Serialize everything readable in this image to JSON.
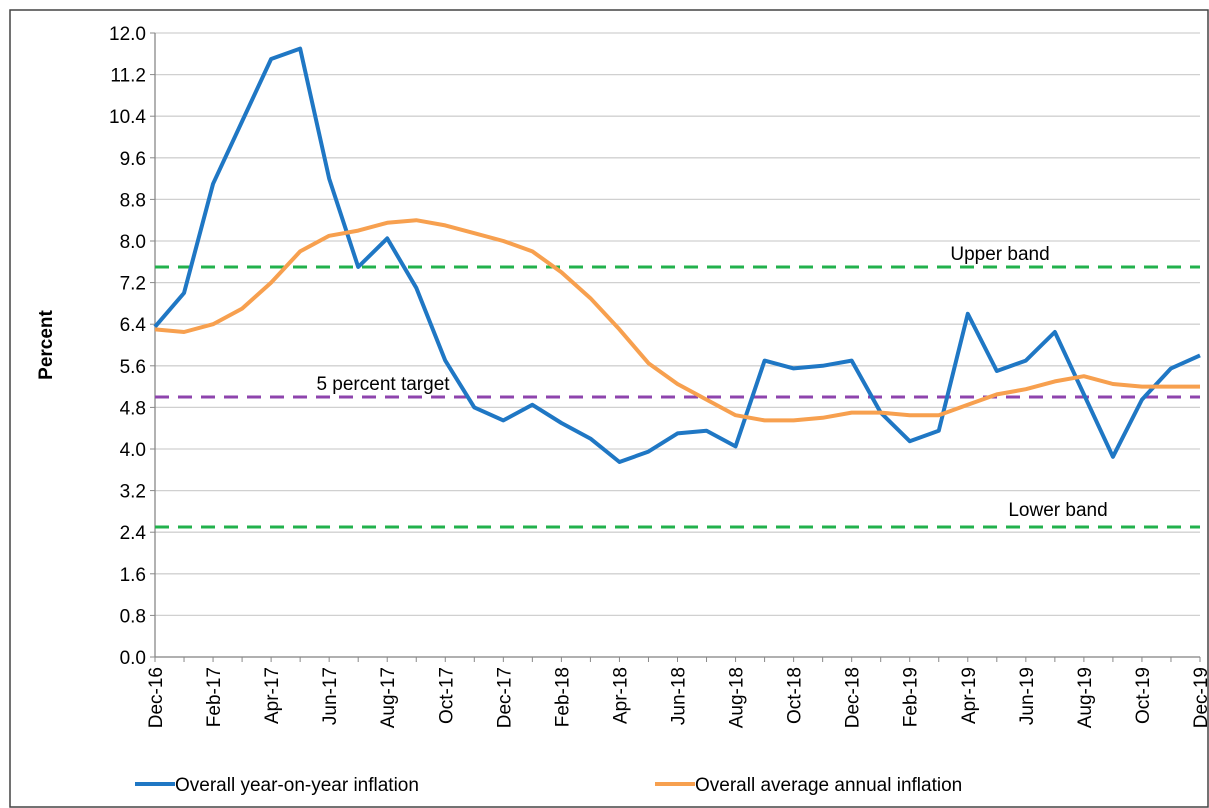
{
  "chart_data": {
    "type": "line",
    "y_label": "Percent",
    "categories": [
      "Dec-16",
      null,
      "Feb-17",
      null,
      "Apr-17",
      null,
      "Jun-17",
      null,
      "Aug-17",
      null,
      "Oct-17",
      null,
      "Dec-17",
      null,
      "Feb-18",
      null,
      "Apr-18",
      null,
      "Jun-18",
      null,
      "Aug-18",
      null,
      "Oct-18",
      null,
      "Dec-18",
      null,
      "Feb-19",
      null,
      "Apr-19",
      null,
      "Jun-19",
      null,
      "Aug-19",
      null,
      "Oct-19",
      null,
      "Dec-19"
    ],
    "series": [
      {
        "name": "Overall year-on-year inflation",
        "color": "#1f77c4",
        "values": [
          6.35,
          7.0,
          9.1,
          10.3,
          11.5,
          11.7,
          9.2,
          7.5,
          8.05,
          7.1,
          5.7,
          4.8,
          4.55,
          4.85,
          4.5,
          4.2,
          3.75,
          3.95,
          4.3,
          4.35,
          4.05,
          5.7,
          5.55,
          5.6,
          5.7,
          4.7,
          4.15,
          4.35,
          6.6,
          5.5,
          5.7,
          6.25,
          5.05,
          3.85,
          4.95,
          5.55,
          5.8
        ]
      },
      {
        "name": "Overall average annual inflation",
        "color": "#f7a04f",
        "values": [
          6.3,
          6.25,
          6.4,
          6.7,
          7.2,
          7.8,
          8.1,
          8.2,
          8.35,
          8.4,
          8.3,
          8.15,
          8.0,
          7.8,
          7.4,
          6.9,
          6.3,
          5.65,
          5.25,
          4.95,
          4.65,
          4.55,
          4.55,
          4.6,
          4.7,
          4.7,
          4.65,
          4.65,
          4.85,
          5.05,
          5.15,
          5.3,
          5.4,
          5.25,
          5.2,
          5.2,
          5.2
        ]
      }
    ],
    "reference_lines": [
      {
        "label": "Upper band",
        "value": 7.5,
        "color": "#22b14c"
      },
      {
        "label": "5 percent target",
        "value": 5,
        "color": "#8e44ad"
      },
      {
        "label": "Lower band",
        "value": 2.5,
        "color": "#22b14c"
      }
    ],
    "ylim": [
      0,
      12
    ],
    "yticks": [
      {
        "value": 0,
        "label": "0.0"
      },
      0.8,
      1.6,
      2.4,
      3.2,
      {
        "value": 4,
        "label": "4.0"
      },
      4.8,
      5.6,
      6.4,
      7.2,
      {
        "value": 8,
        "label": "8.0"
      },
      8.8,
      9.6,
      10.4,
      11.2,
      {
        "value": 12,
        "label": "12.0"
      }
    ],
    "grid": true,
    "legend": "bottom"
  }
}
